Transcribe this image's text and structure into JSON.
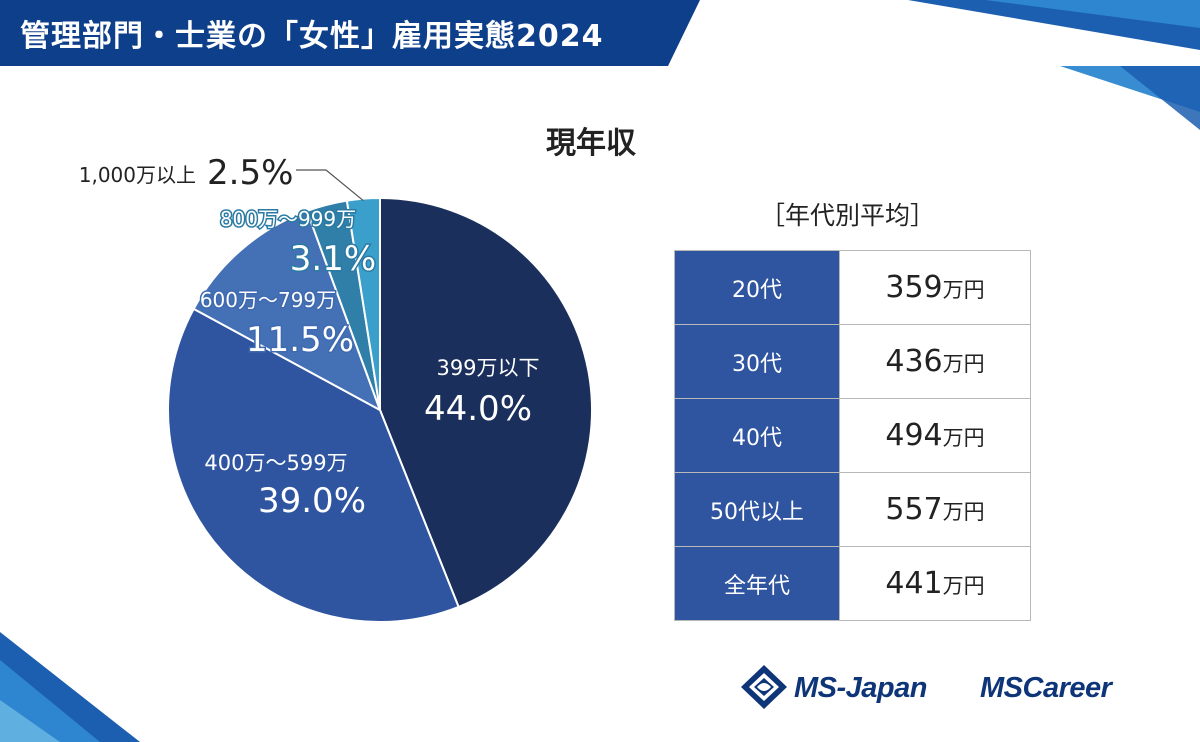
{
  "header": {
    "title": "管理部門・士業の「女性」雇用実態2024"
  },
  "colors": {
    "banner": "#0d3f8a",
    "slice_399": "#1b2f5c",
    "slice_400_599": "#2f54a0",
    "slice_600_799": "#4470b6",
    "slice_800_999": "#2f7fa8",
    "slice_1000": "#3a9fca",
    "table_key_bg": "#2f54a0",
    "brand": "#0f3579"
  },
  "chart_data": {
    "type": "pie",
    "title": "現年収",
    "start_angle_deg": 0,
    "direction": "clockwise",
    "slices": [
      {
        "label": "399万以下",
        "value": 44.0,
        "display": "44.0%",
        "color": "#1b2f5c"
      },
      {
        "label": "400万～599万",
        "value": 39.0,
        "display": "39.0%",
        "color": "#2f54a0"
      },
      {
        "label": "600万～799万",
        "value": 11.5,
        "display": "11.5%",
        "color": "#4470b6"
      },
      {
        "label": "800万～999万",
        "value": 3.1,
        "display": "3.1%",
        "color": "#2f7fa8"
      },
      {
        "label": "1,000万以上",
        "value": 2.5,
        "display": "2.5%",
        "color": "#3a9fca"
      }
    ]
  },
  "table": {
    "title": "［年代別平均］",
    "rows": [
      {
        "age": "20代",
        "value": "359",
        "unit": "万円"
      },
      {
        "age": "30代",
        "value": "436",
        "unit": "万円"
      },
      {
        "age": "40代",
        "value": "494",
        "unit": "万円"
      },
      {
        "age": "50代以上",
        "value": "557",
        "unit": "万円"
      },
      {
        "age": "全年代",
        "value": "441",
        "unit": "万円"
      }
    ]
  },
  "logos": {
    "ms_japan": "MS-Japan",
    "ms_career": "MSCareer"
  }
}
